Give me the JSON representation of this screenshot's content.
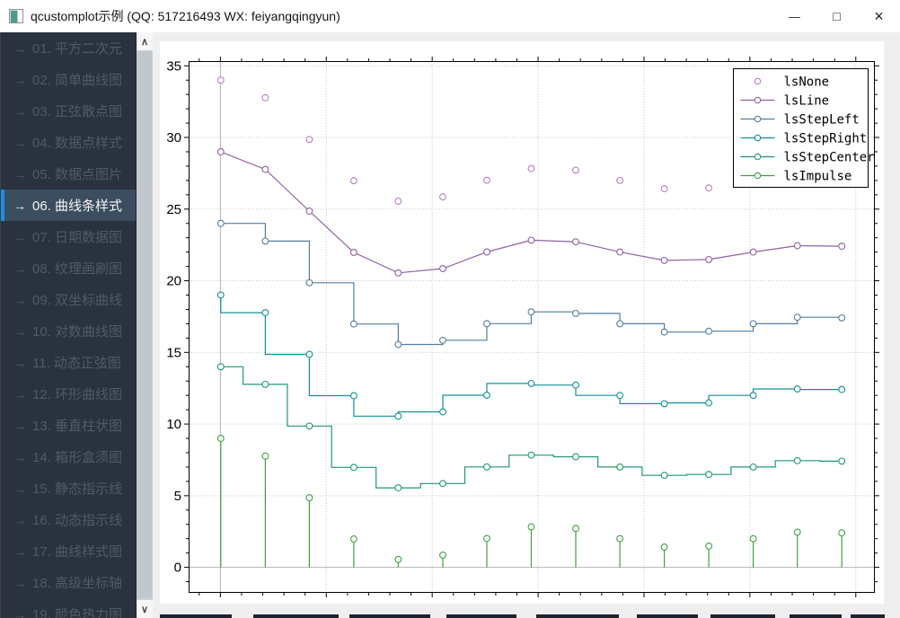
{
  "window": {
    "title": "qcustomplot示例 (QQ: 517216493 WX: feiyangqingyun)",
    "controls": {
      "minimize": "—",
      "maximize": "□",
      "close": "×"
    }
  },
  "ui": {
    "accent_color": "#1e8fe0",
    "sidebar_bg": "#2a323f",
    "sidebar_selected_bg": "#3c4d5f"
  },
  "sidebar": {
    "arrow_glyph": "→",
    "selected_index": 5,
    "items": [
      "01. 平方二次元",
      "02. 简单曲线图",
      "03. 正弦散点图",
      "04. 数据点样式",
      "05. 数据点图片",
      "06. 曲线条样式",
      "07. 日期数据图",
      "08. 纹理画刷图",
      "09. 双坐标曲线",
      "10. 对数曲线图",
      "11. 动态正弦图",
      "12. 环形曲线图",
      "13. 垂直柱状图",
      "14. 箱形盒须图",
      "15. 静态指示线",
      "16. 动态指示线",
      "17. 曲线样式图",
      "18. 高级坐标轴",
      "19. 颜色热力图"
    ],
    "scroll_up_glyph": "∧",
    "scroll_down_glyph": "∨"
  },
  "chart_data": {
    "type": "line",
    "title": "",
    "xlabel": "",
    "ylabel": "",
    "x": [
      0.01,
      1.06,
      2.1,
      3.15,
      4.2,
      5.25,
      6.29,
      7.34,
      8.39,
      9.43,
      10.48,
      11.53,
      12.58,
      13.62,
      14.67
    ],
    "series": [
      {
        "name": "lsNone",
        "style": "none",
        "color": "#b47fc6",
        "values": [
          34.0,
          32.77,
          29.86,
          26.98,
          25.55,
          25.85,
          27.01,
          27.83,
          27.72,
          27.0,
          26.42,
          26.48,
          27.0,
          27.45,
          27.41
        ]
      },
      {
        "name": "lsLine",
        "style": "line",
        "color": "#8f62a2",
        "values": [
          29.0,
          27.77,
          24.86,
          21.98,
          20.55,
          20.85,
          22.01,
          22.83,
          22.72,
          22.0,
          21.42,
          21.48,
          22.0,
          22.45,
          22.41
        ]
      },
      {
        "name": "lsStepLeft",
        "style": "step-left",
        "color": "#557da1",
        "values": [
          24.0,
          22.77,
          19.86,
          16.98,
          15.55,
          15.85,
          17.01,
          17.83,
          17.72,
          17.0,
          16.42,
          16.48,
          17.0,
          17.45,
          17.41
        ]
      },
      {
        "name": "lsStepRight",
        "style": "step-right",
        "color": "#13909a",
        "values": [
          19.0,
          17.77,
          14.86,
          11.98,
          10.55,
          10.85,
          12.01,
          12.83,
          12.72,
          12.0,
          11.42,
          11.48,
          12.0,
          12.45,
          12.41
        ]
      },
      {
        "name": "lsStepCenter",
        "style": "step-center",
        "color": "#1f9b68",
        "values": [
          14.0,
          12.77,
          9.86,
          6.98,
          5.55,
          5.85,
          7.01,
          7.83,
          7.72,
          7.0,
          6.42,
          6.48,
          7.0,
          7.45,
          7.41
        ]
      },
      {
        "name": "lsImpulse",
        "style": "impulse",
        "color": "#41a141",
        "values": [
          9.0,
          7.77,
          4.86,
          1.98,
          0.55,
          0.85,
          2.01,
          2.83,
          2.72,
          2.0,
          1.42,
          1.48,
          2.0,
          2.45,
          2.41
        ]
      }
    ],
    "xlim": [
      -0.75,
      15.45
    ],
    "ylim": [
      -1.78,
      35.33
    ],
    "x_ticks": [
      0,
      2.5,
      5,
      7.5,
      10,
      12.5,
      15
    ],
    "y_ticks": [
      0,
      5,
      10,
      15,
      20,
      25,
      30,
      35
    ],
    "y_tick_labels": [
      "0",
      "5",
      "10",
      "15",
      "20",
      "25",
      "30",
      "35"
    ],
    "grid": "dotted",
    "grid_color": "#c9c9c9",
    "zero_line_color": "#b5b5b5",
    "legend_position": "top-right",
    "legend_entries": [
      "lsNone",
      "lsLine",
      "lsStepLeft",
      "lsStepRight",
      "lsStepCenter",
      "lsImpulse"
    ]
  }
}
